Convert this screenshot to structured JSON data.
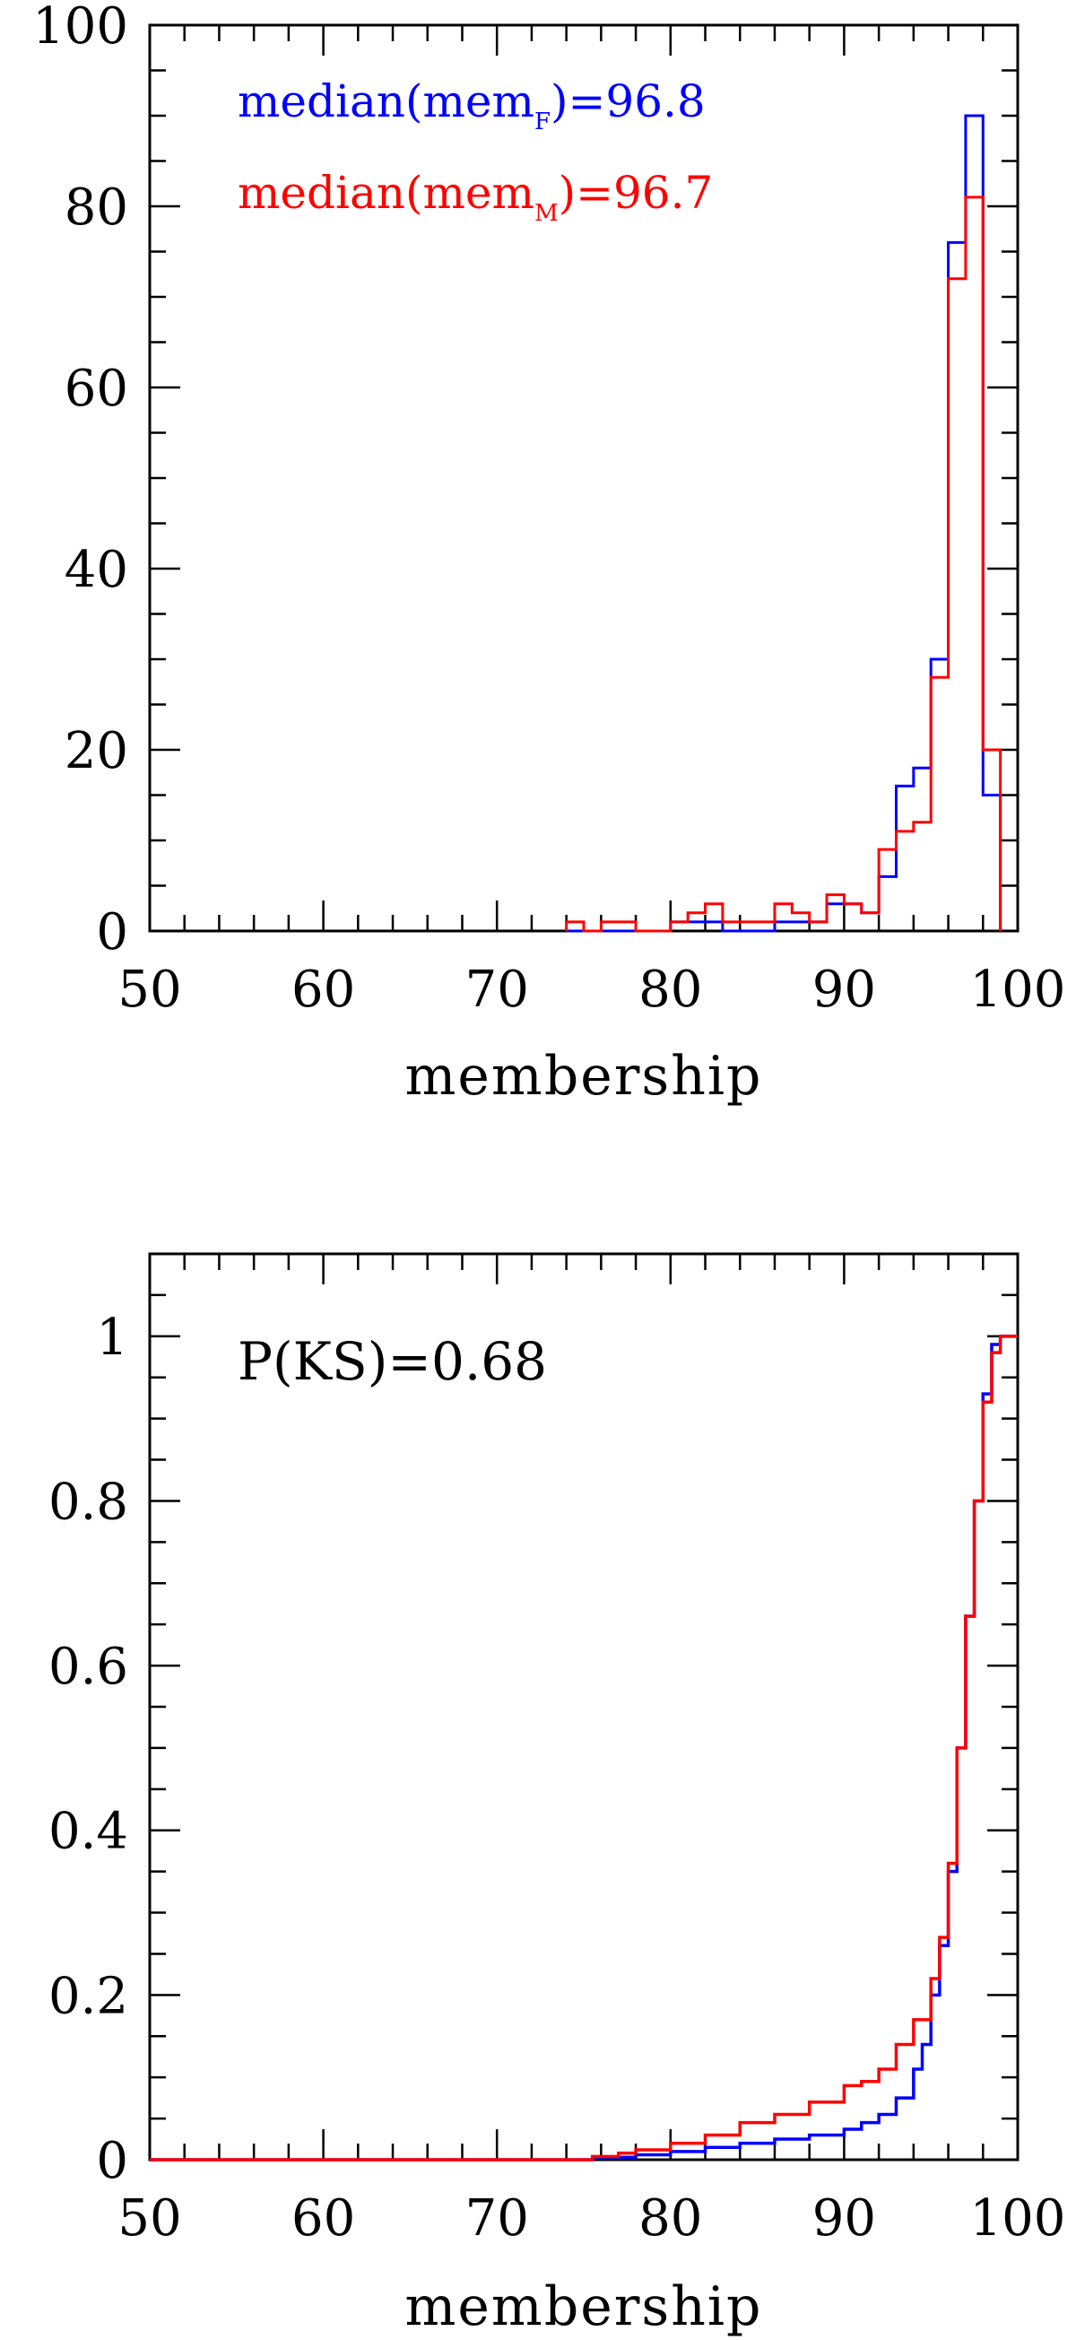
{
  "chart_data": [
    {
      "type": "histogram",
      "xlabel": "membership",
      "ylabel": "",
      "xlim": [
        50,
        100
      ],
      "ylim": [
        0,
        100
      ],
      "x_ticks": [
        "50",
        "60",
        "70",
        "80",
        "90",
        "100"
      ],
      "y_ticks": [
        "0",
        "20",
        "40",
        "60",
        "80",
        "100"
      ],
      "bin_width": 1,
      "bin_start": 74,
      "series": [
        {
          "name": "median(mem_F)=96.8",
          "color": "#0000ff",
          "counts": [
            0,
            0,
            0,
            0,
            0,
            0,
            1,
            1,
            1,
            0,
            0,
            0,
            1,
            1,
            1,
            3,
            3,
            2,
            6,
            16,
            18,
            30,
            76,
            90,
            15
          ]
        },
        {
          "name": "median(mem_M)=96.7",
          "color": "#ff0000",
          "counts": [
            1,
            0,
            1,
            1,
            0,
            0,
            1,
            2,
            3,
            1,
            1,
            1,
            3,
            2,
            1,
            4,
            3,
            2,
            9,
            11,
            12,
            28,
            72,
            81,
            20
          ]
        }
      ],
      "annotations": {
        "blue_main": "median(mem",
        "blue_sub": "F",
        "blue_tail": ")=96.8",
        "red_main": "median(mem",
        "red_sub": "M",
        "red_tail": ")=96.7"
      }
    },
    {
      "type": "line",
      "xlabel": "membership",
      "ylabel": "",
      "xlim": [
        50,
        100
      ],
      "ylim": [
        0,
        1.1
      ],
      "x_ticks": [
        "50",
        "60",
        "70",
        "80",
        "90",
        "100"
      ],
      "y_ticks": [
        "0",
        "0.2",
        "0.4",
        "0.6",
        "0.8",
        "1"
      ],
      "annotation": "P(KS)=0.68",
      "series": [
        {
          "name": "F",
          "color": "#0000ff",
          "x": [
            50,
            74.5,
            75.5,
            78,
            80,
            82,
            84,
            86,
            88,
            90,
            91,
            92,
            93,
            94,
            94.5,
            95,
            95.5,
            96,
            96.5,
            97,
            97.5,
            98,
            98.5,
            99,
            100
          ],
          "y": [
            0,
            0,
            0.003,
            0.006,
            0.01,
            0.015,
            0.02,
            0.025,
            0.03,
            0.037,
            0.045,
            0.055,
            0.075,
            0.11,
            0.14,
            0.2,
            0.26,
            0.35,
            0.5,
            0.66,
            0.8,
            0.93,
            0.99,
            1.0,
            1.0
          ]
        },
        {
          "name": "M",
          "color": "#ff0000",
          "x": [
            50,
            74.5,
            75.5,
            77,
            78,
            80,
            82,
            84,
            86,
            88,
            90,
            91,
            92,
            93,
            94,
            95,
            95.5,
            96,
            96.5,
            97,
            97.5,
            98,
            98.5,
            99,
            100
          ],
          "y": [
            0,
            0,
            0.004,
            0.008,
            0.012,
            0.02,
            0.03,
            0.045,
            0.055,
            0.07,
            0.09,
            0.095,
            0.11,
            0.14,
            0.17,
            0.22,
            0.27,
            0.36,
            0.5,
            0.66,
            0.8,
            0.92,
            0.98,
            1.0,
            1.0
          ]
        }
      ]
    }
  ]
}
